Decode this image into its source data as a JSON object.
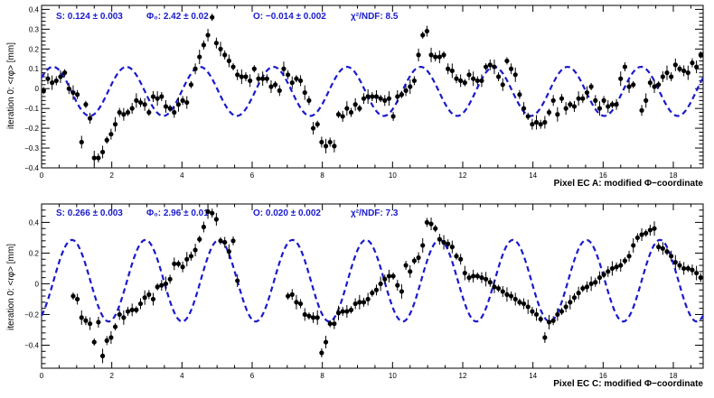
{
  "colors": {
    "fit": "#1a1acc",
    "points": "#000000",
    "frame": "#000000",
    "background": "#ffffff"
  },
  "chart_data": [
    {
      "type": "scatter",
      "title": "",
      "xlabel": "Pixel EC A: modified Φ−coordinate",
      "ylabel": "iteration 0: <rφ> [mm]",
      "xlim": [
        0,
        18.85
      ],
      "ylim": [
        -0.4,
        0.42
      ],
      "xticks": [
        0,
        2,
        4,
        6,
        8,
        10,
        12,
        14,
        16,
        18
      ],
      "xtick_labels": [
        "0",
        "2",
        "4",
        "6",
        "8",
        "10",
        "12",
        "14",
        "16",
        "18"
      ],
      "yticks": [
        -0.4,
        -0.3,
        -0.2,
        -0.1,
        0,
        0.1,
        0.2,
        0.3,
        0.4
      ],
      "ytick_labels": [
        "−0.4",
        "−0.3",
        "−0.2",
        "−0.1",
        "0",
        "0.1",
        "0.2",
        "0.3",
        "0.4"
      ],
      "grid": false,
      "fit_text": {
        "s": "S:  0.124 ± 0.003",
        "phi0": "Φ₀: 2.42 ± 0.02",
        "offset": "O:  −0.014 ± 0.002",
        "chi2": "χ²/NDF: 8.5"
      },
      "fit": {
        "function": "O + S*cos(3*(x - phi0))",
        "S": 0.124,
        "phi0": 2.42,
        "O": -0.014
      },
      "points": [
        [
          0.06,
          -0.01
        ],
        [
          0.18,
          0.05
        ],
        [
          0.3,
          0.03
        ],
        [
          0.42,
          0.04
        ],
        [
          0.54,
          0.06
        ],
        [
          0.66,
          0.08
        ],
        [
          0.78,
          0.0
        ],
        [
          0.9,
          -0.02
        ],
        [
          1.02,
          -0.03
        ],
        [
          1.14,
          -0.27
        ],
        [
          1.26,
          -0.08
        ],
        [
          1.38,
          -0.15
        ],
        [
          1.5,
          -0.35
        ],
        [
          1.62,
          -0.35
        ],
        [
          1.74,
          -0.32
        ],
        [
          1.86,
          -0.26
        ],
        [
          1.98,
          -0.23
        ],
        [
          2.1,
          -0.18
        ],
        [
          2.22,
          -0.12
        ],
        [
          2.34,
          -0.13
        ],
        [
          2.46,
          -0.12
        ],
        [
          2.58,
          -0.1
        ],
        [
          2.7,
          -0.06
        ],
        [
          2.82,
          -0.07
        ],
        [
          2.94,
          -0.08
        ],
        [
          3.06,
          -0.12
        ],
        [
          3.18,
          -0.04
        ],
        [
          3.3,
          -0.05
        ],
        [
          3.42,
          -0.04
        ],
        [
          3.54,
          -0.09
        ],
        [
          3.66,
          -0.1
        ],
        [
          3.78,
          -0.12
        ],
        [
          3.9,
          -0.08
        ],
        [
          4.02,
          -0.06
        ],
        [
          4.14,
          -0.07
        ],
        [
          4.26,
          0.02
        ],
        [
          4.38,
          0.1
        ],
        [
          4.5,
          0.16
        ],
        [
          4.62,
          0.22
        ],
        [
          4.74,
          0.27
        ],
        [
          4.86,
          0.36
        ],
        [
          4.98,
          0.23
        ],
        [
          5.1,
          0.2
        ],
        [
          5.22,
          0.17
        ],
        [
          5.34,
          0.14
        ],
        [
          5.46,
          0.11
        ],
        [
          5.58,
          0.07
        ],
        [
          5.7,
          0.06
        ],
        [
          5.82,
          0.06
        ],
        [
          5.94,
          0.04
        ],
        [
          6.06,
          0.1
        ],
        [
          6.18,
          0.05
        ],
        [
          6.3,
          0.05
        ],
        [
          6.42,
          0.05
        ],
        [
          6.54,
          0.01
        ],
        [
          6.66,
          0.02
        ],
        [
          6.78,
          -0.01
        ],
        [
          6.9,
          0.1
        ],
        [
          7.02,
          0.07
        ],
        [
          7.14,
          0.03
        ],
        [
          7.26,
          0.05
        ],
        [
          7.38,
          0.04
        ],
        [
          7.5,
          -0.02
        ],
        [
          7.62,
          -0.06
        ],
        [
          7.74,
          -0.2
        ],
        [
          7.86,
          -0.18
        ],
        [
          7.98,
          -0.27
        ],
        [
          8.1,
          -0.29
        ],
        [
          8.22,
          -0.27
        ],
        [
          8.34,
          -0.29
        ],
        [
          8.46,
          -0.13
        ],
        [
          8.58,
          -0.14
        ],
        [
          8.7,
          -0.1
        ],
        [
          8.82,
          -0.12
        ],
        [
          8.94,
          -0.08
        ],
        [
          9.06,
          -0.1
        ],
        [
          9.18,
          -0.05
        ],
        [
          9.3,
          -0.04
        ],
        [
          9.42,
          -0.04
        ],
        [
          9.54,
          -0.04
        ],
        [
          9.66,
          -0.05
        ],
        [
          9.78,
          -0.06
        ],
        [
          9.9,
          -0.05
        ],
        [
          10.02,
          -0.14
        ],
        [
          10.14,
          -0.04
        ],
        [
          10.26,
          -0.03
        ],
        [
          10.38,
          -0.01
        ],
        [
          10.5,
          0.01
        ],
        [
          10.62,
          0.04
        ],
        [
          10.74,
          0.17
        ],
        [
          10.86,
          0.27
        ],
        [
          10.98,
          0.29
        ],
        [
          11.1,
          0.17
        ],
        [
          11.22,
          0.16
        ],
        [
          11.34,
          0.16
        ],
        [
          11.46,
          0.17
        ],
        [
          11.58,
          0.1
        ],
        [
          11.7,
          0.09
        ],
        [
          11.82,
          0.05
        ],
        [
          11.94,
          0.04
        ],
        [
          12.06,
          0.03
        ],
        [
          12.18,
          0.07
        ],
        [
          12.3,
          0.05
        ],
        [
          12.42,
          0.04
        ],
        [
          12.54,
          0.04
        ],
        [
          12.66,
          0.11
        ],
        [
          12.78,
          0.12
        ],
        [
          12.9,
          0.11
        ],
        [
          13.02,
          0.06
        ],
        [
          13.14,
          0.02
        ],
        [
          13.26,
          0.14
        ],
        [
          13.38,
          0.1
        ],
        [
          13.5,
          0.07
        ],
        [
          13.62,
          -0.03
        ],
        [
          13.74,
          -0.1
        ],
        [
          13.86,
          -0.14
        ],
        [
          13.98,
          -0.18
        ],
        [
          14.1,
          -0.17
        ],
        [
          14.22,
          -0.18
        ],
        [
          14.34,
          -0.17
        ],
        [
          14.46,
          -0.12
        ],
        [
          14.58,
          -0.06
        ],
        [
          14.7,
          -0.13
        ],
        [
          14.82,
          -0.05
        ],
        [
          14.94,
          -0.1
        ],
        [
          15.06,
          -0.08
        ],
        [
          15.18,
          -0.09
        ],
        [
          15.3,
          -0.05
        ],
        [
          15.42,
          -0.05
        ],
        [
          15.54,
          -0.02
        ],
        [
          15.66,
          0.01
        ],
        [
          15.78,
          -0.06
        ],
        [
          15.9,
          -0.1
        ],
        [
          16.02,
          -0.06
        ],
        [
          16.14,
          -0.09
        ],
        [
          16.26,
          -0.08
        ],
        [
          16.38,
          -0.08
        ],
        [
          16.5,
          0.05
        ],
        [
          16.62,
          0.11
        ],
        [
          16.74,
          0.01
        ],
        [
          16.86,
          0.02
        ],
        [
          17.1,
          -0.11
        ],
        [
          17.22,
          -0.06
        ],
        [
          17.34,
          0.03
        ],
        [
          17.46,
          0.01
        ],
        [
          17.58,
          0.02
        ],
        [
          17.7,
          0.06
        ],
        [
          17.82,
          0.08
        ],
        [
          17.94,
          0.06
        ],
        [
          18.06,
          0.12
        ],
        [
          18.18,
          0.1
        ],
        [
          18.3,
          0.09
        ],
        [
          18.42,
          0.08
        ],
        [
          18.54,
          0.13
        ],
        [
          18.66,
          0.11
        ],
        [
          18.78,
          0.17
        ]
      ]
    },
    {
      "type": "scatter",
      "title": "",
      "xlabel": "Pixel EC C: modified Φ−coordinate",
      "ylabel": "iteration 0: <rφ> [mm]",
      "xlim": [
        0,
        18.85
      ],
      "ylim": [
        -0.55,
        0.52
      ],
      "xticks": [
        0,
        2,
        4,
        6,
        8,
        10,
        12,
        14,
        16,
        18
      ],
      "xtick_labels": [
        "0",
        "2",
        "4",
        "6",
        "8",
        "10",
        "12",
        "14",
        "16",
        "18"
      ],
      "yticks": [
        -0.4,
        -0.2,
        0,
        0.2,
        0.4
      ],
      "ytick_labels": [
        "−0.4",
        "−0.2",
        "0",
        "0.2",
        "0.4"
      ],
      "grid": false,
      "fit_text": {
        "s": "S:  0.266 ± 0.003",
        "phi0": "Φ₀: 2.96 ± 0.01",
        "offset": "O:  0.020 ± 0.002",
        "chi2": "χ²/NDF: 7.3"
      },
      "fit": {
        "function": "O + S*cos(3*(x - phi0))",
        "S": 0.266,
        "phi0": 2.96,
        "O": 0.02
      },
      "points": [
        [
          0.9,
          -0.08
        ],
        [
          1.02,
          -0.1
        ],
        [
          1.14,
          -0.22
        ],
        [
          1.26,
          -0.24
        ],
        [
          1.38,
          -0.26
        ],
        [
          1.5,
          -0.38
        ],
        [
          1.62,
          -0.25
        ],
        [
          1.74,
          -0.47
        ],
        [
          1.86,
          -0.37
        ],
        [
          1.98,
          -0.35
        ],
        [
          2.1,
          -0.28
        ],
        [
          2.22,
          -0.2
        ],
        [
          2.34,
          -0.22
        ],
        [
          2.46,
          -0.18
        ],
        [
          2.58,
          -0.17
        ],
        [
          2.7,
          -0.17
        ],
        [
          2.82,
          -0.13
        ],
        [
          2.94,
          -0.09
        ],
        [
          3.06,
          -0.07
        ],
        [
          3.18,
          -0.1
        ],
        [
          3.3,
          -0.02
        ],
        [
          3.42,
          -0.01
        ],
        [
          3.54,
          0.0
        ],
        [
          3.66,
          0.03
        ],
        [
          3.78,
          0.13
        ],
        [
          3.9,
          0.13
        ],
        [
          4.02,
          0.11
        ],
        [
          4.14,
          0.16
        ],
        [
          4.26,
          0.18
        ],
        [
          4.38,
          0.22
        ],
        [
          4.5,
          0.29
        ],
        [
          4.62,
          0.37
        ],
        [
          4.74,
          0.47
        ],
        [
          4.86,
          0.46
        ],
        [
          4.98,
          0.42
        ],
        [
          5.1,
          0.28
        ],
        [
          5.22,
          0.27
        ],
        [
          5.34,
          0.21
        ],
        [
          5.46,
          0.28
        ],
        [
          5.58,
          0.02
        ],
        [
          7.02,
          -0.08
        ],
        [
          7.14,
          -0.07
        ],
        [
          7.26,
          -0.12
        ],
        [
          7.38,
          -0.13
        ],
        [
          7.5,
          -0.2
        ],
        [
          7.62,
          -0.21
        ],
        [
          7.74,
          -0.22
        ],
        [
          7.86,
          -0.22
        ],
        [
          7.98,
          -0.45
        ],
        [
          8.1,
          -0.38
        ],
        [
          8.22,
          -0.26
        ],
        [
          8.34,
          -0.26
        ],
        [
          8.46,
          -0.19
        ],
        [
          8.58,
          -0.18
        ],
        [
          8.7,
          -0.18
        ],
        [
          8.82,
          -0.17
        ],
        [
          8.94,
          -0.13
        ],
        [
          9.06,
          -0.12
        ],
        [
          9.18,
          -0.12
        ],
        [
          9.3,
          -0.1
        ],
        [
          9.42,
          -0.06
        ],
        [
          9.54,
          -0.04
        ],
        [
          9.66,
          0.0
        ],
        [
          9.78,
          0.03
        ],
        [
          9.9,
          0.05
        ],
        [
          10.02,
          0.05
        ],
        [
          10.14,
          -0.01
        ],
        [
          10.26,
          -0.05
        ],
        [
          10.38,
          0.12
        ],
        [
          10.5,
          0.08
        ],
        [
          10.62,
          0.15
        ],
        [
          10.74,
          0.17
        ],
        [
          10.86,
          0.25
        ],
        [
          10.98,
          0.4
        ],
        [
          11.1,
          0.39
        ],
        [
          11.22,
          0.36
        ],
        [
          11.34,
          0.29
        ],
        [
          11.46,
          0.27
        ],
        [
          11.58,
          0.26
        ],
        [
          11.7,
          0.24
        ],
        [
          11.82,
          0.18
        ],
        [
          11.94,
          0.16
        ],
        [
          12.06,
          0.07
        ],
        [
          12.18,
          0.04
        ],
        [
          12.3,
          0.05
        ],
        [
          12.42,
          0.05
        ],
        [
          12.54,
          0.04
        ],
        [
          12.66,
          0.03
        ],
        [
          12.78,
          0.01
        ],
        [
          12.9,
          -0.02
        ],
        [
          13.02,
          -0.03
        ],
        [
          13.14,
          -0.05
        ],
        [
          13.26,
          -0.07
        ],
        [
          13.38,
          -0.08
        ],
        [
          13.5,
          -0.1
        ],
        [
          13.62,
          -0.12
        ],
        [
          13.74,
          -0.13
        ],
        [
          13.86,
          -0.15
        ],
        [
          13.98,
          -0.18
        ],
        [
          14.1,
          -0.2
        ],
        [
          14.22,
          -0.23
        ],
        [
          14.34,
          -0.35
        ],
        [
          14.46,
          -0.25
        ],
        [
          14.58,
          -0.24
        ],
        [
          14.7,
          -0.2
        ],
        [
          14.82,
          -0.18
        ],
        [
          14.94,
          -0.15
        ],
        [
          15.06,
          -0.12
        ],
        [
          15.18,
          -0.09
        ],
        [
          15.3,
          -0.06
        ],
        [
          15.42,
          -0.03
        ],
        [
          15.54,
          -0.02
        ],
        [
          15.66,
          0.0
        ],
        [
          15.78,
          0.01
        ],
        [
          15.9,
          0.04
        ],
        [
          16.02,
          0.06
        ],
        [
          16.14,
          0.08
        ],
        [
          16.26,
          0.1
        ],
        [
          16.38,
          0.11
        ],
        [
          16.5,
          0.12
        ],
        [
          16.62,
          0.15
        ],
        [
          16.74,
          0.18
        ],
        [
          16.86,
          0.25
        ],
        [
          16.98,
          0.3
        ],
        [
          17.1,
          0.32
        ],
        [
          17.22,
          0.33
        ],
        [
          17.34,
          0.35
        ],
        [
          17.46,
          0.36
        ],
        [
          17.58,
          0.24
        ],
        [
          17.7,
          0.23
        ],
        [
          17.82,
          0.21
        ],
        [
          17.94,
          0.18
        ],
        [
          18.06,
          0.14
        ],
        [
          18.18,
          0.12
        ],
        [
          18.3,
          0.1
        ],
        [
          18.42,
          0.1
        ],
        [
          18.54,
          0.09
        ],
        [
          18.66,
          0.07
        ],
        [
          18.78,
          0.04
        ]
      ]
    }
  ]
}
